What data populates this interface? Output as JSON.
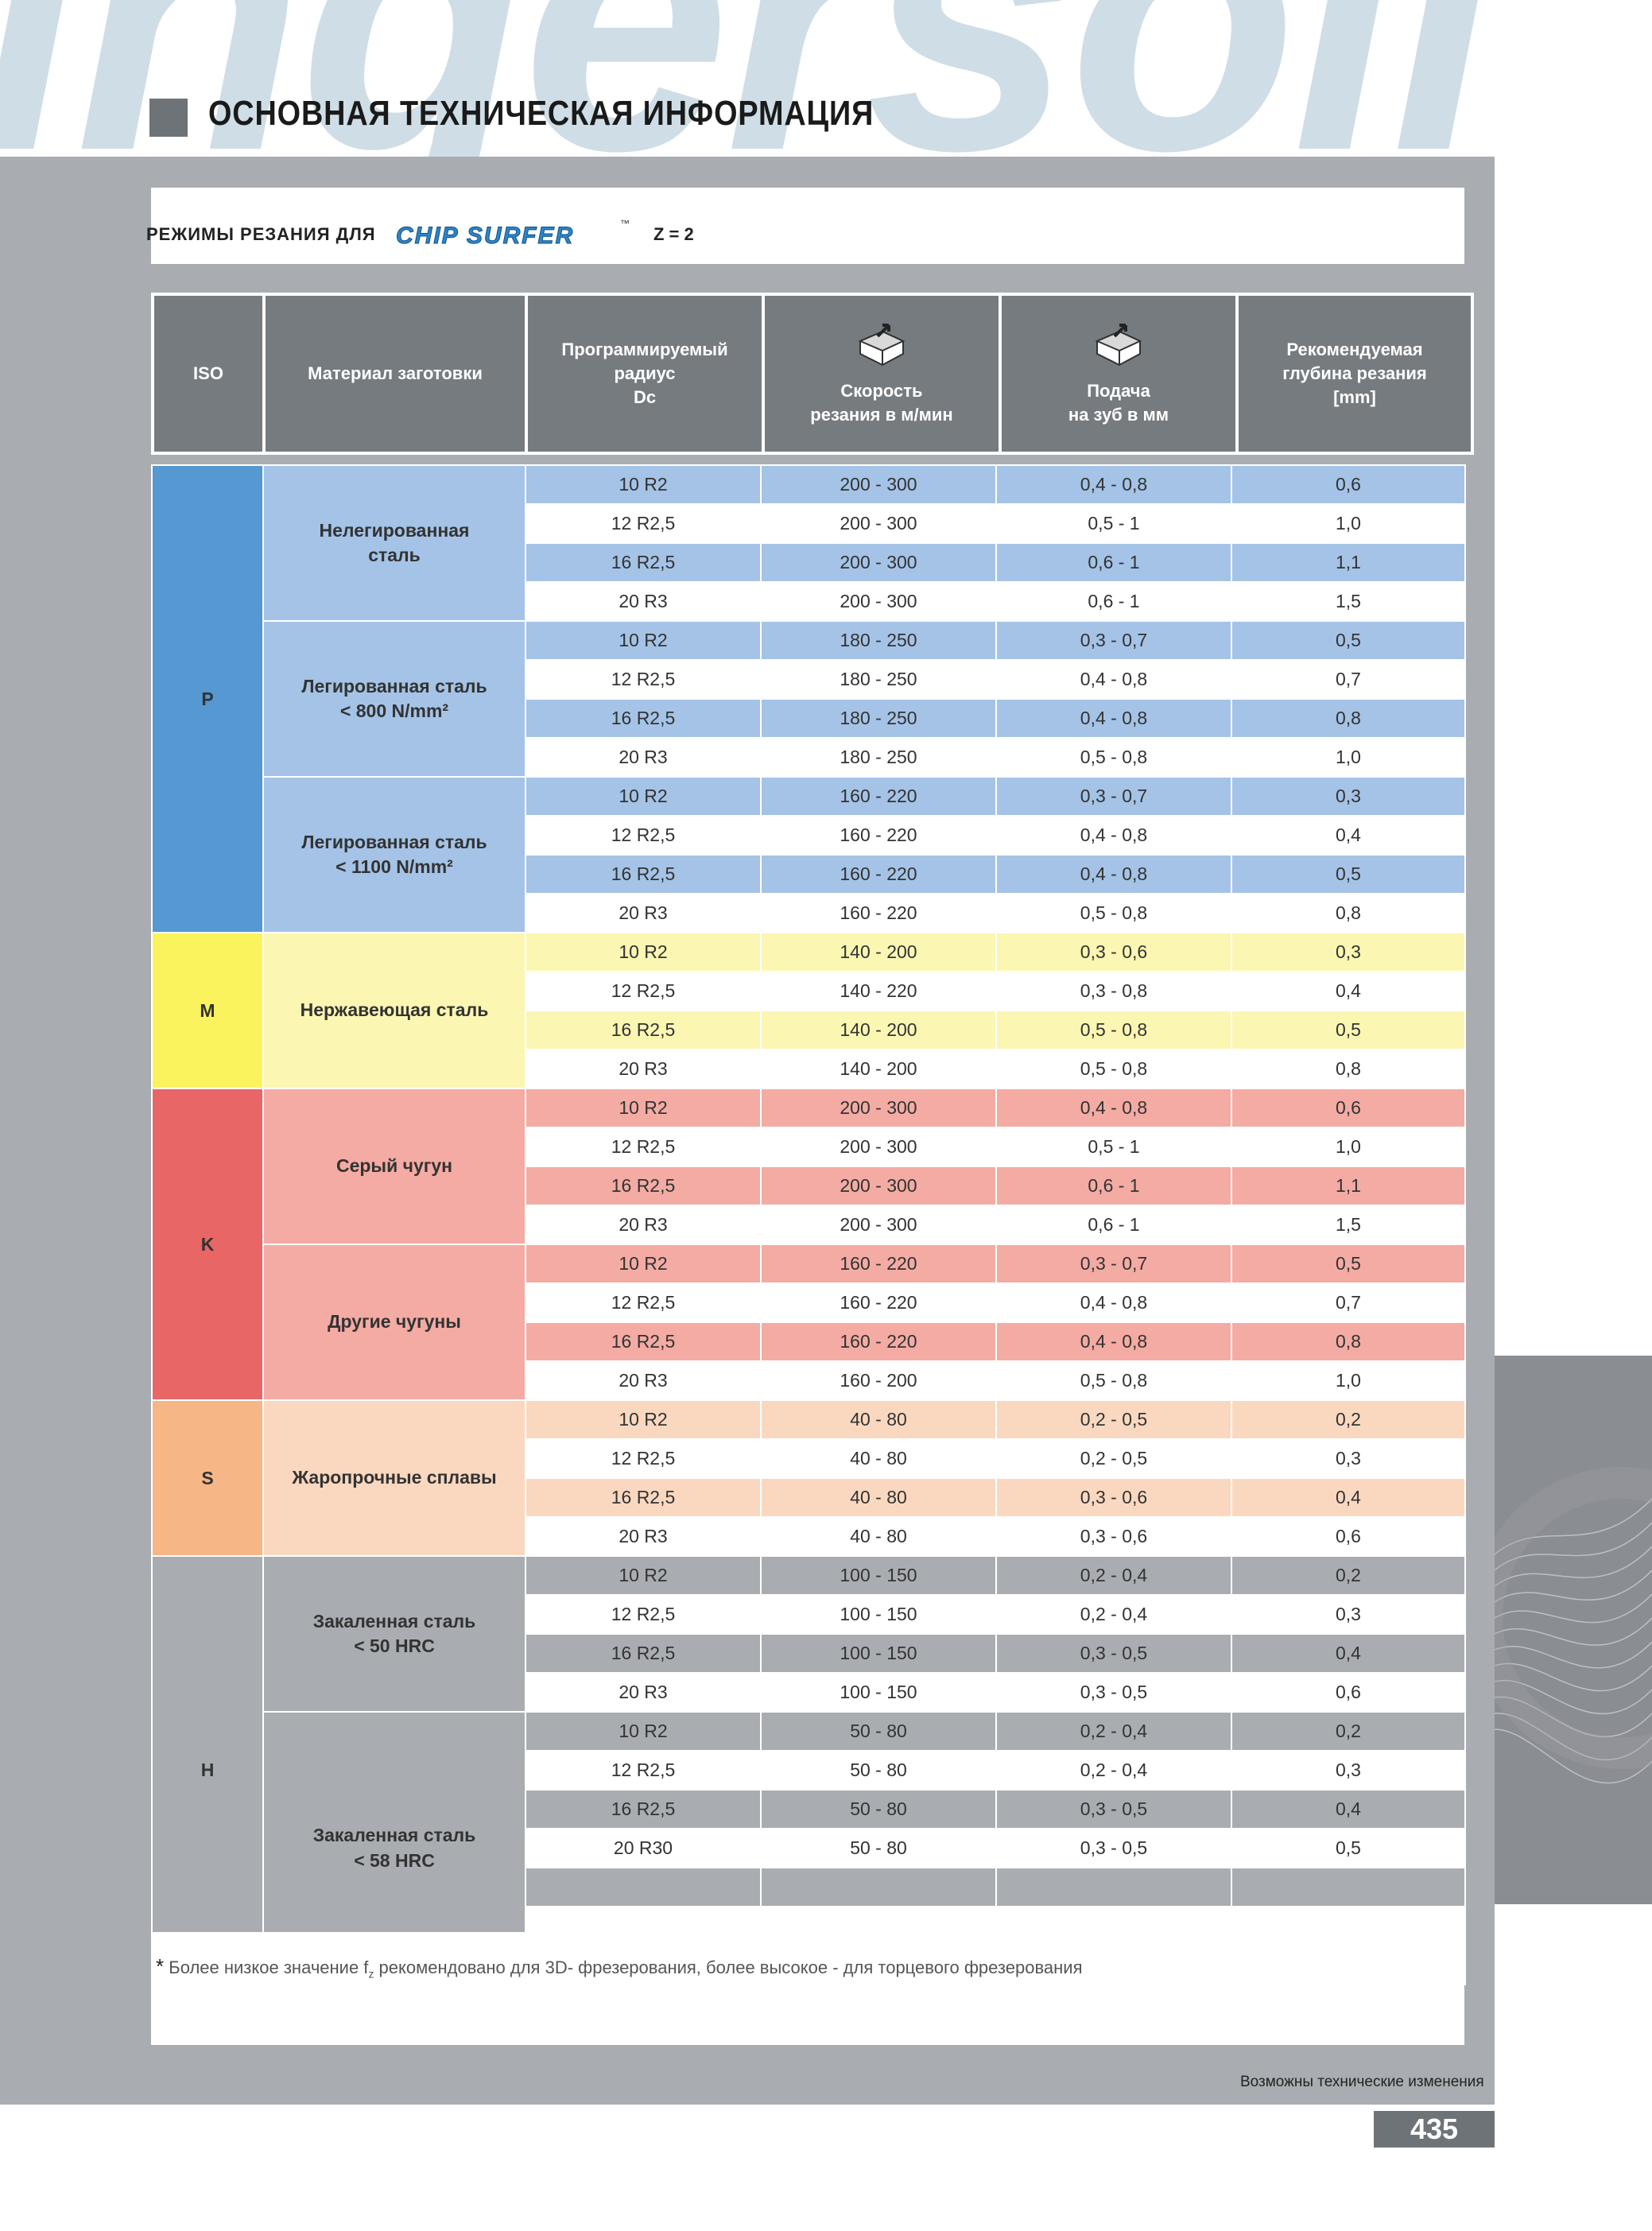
{
  "watermark": "ingersoll",
  "page_title": "ОСНОВНАЯ ТЕХНИЧЕСКАЯ ИНФОРМАЦИЯ",
  "subtitle": {
    "prefix": "РЕЖИМЫ РЕЗАНИЯ ДЛЯ",
    "brand": "CHIP SURFER",
    "trademark": "™",
    "z": "Z = 2"
  },
  "table_header": {
    "iso": "ISO",
    "material": "Материал заготовки",
    "radius": [
      "Программируемый",
      "радиус",
      "Dc"
    ],
    "speed": [
      "Скорость",
      "резания в м/мин"
    ],
    "feed": [
      "Подача",
      "на зуб в мм"
    ],
    "depth": [
      "Рекомендуемая",
      "глубина резания",
      "[mm]"
    ],
    "speed_icon": "cutting-insert-icon",
    "feed_icon": "cutting-insert-icon"
  },
  "groups": [
    {
      "iso": "P",
      "colors": {
        "iso": "#5598d2",
        "material": "#a4c3e6"
      },
      "materials": [
        {
          "name": [
            "Нелегированная",
            "сталь"
          ],
          "rows": [
            [
              "10 R2",
              "200 - 300",
              "0,4 - 0,8",
              "0,6"
            ],
            [
              "12 R2,5",
              "200 - 300",
              "0,5 - 1",
              "1,0"
            ],
            [
              "16 R2,5",
              "200 - 300",
              "0,6 - 1",
              "1,1"
            ],
            [
              "20 R3",
              "200 - 300",
              "0,6 - 1",
              "1,5"
            ]
          ]
        },
        {
          "name": [
            "Легированная сталь",
            "< 800 N/mm²"
          ],
          "rows": [
            [
              "10 R2",
              "180 - 250",
              "0,3 - 0,7",
              "0,5"
            ],
            [
              "12 R2,5",
              "180 - 250",
              "0,4 - 0,8",
              "0,7"
            ],
            [
              "16 R2,5",
              "180 - 250",
              "0,4 - 0,8",
              "0,8"
            ],
            [
              "20 R3",
              "180 - 250",
              "0,5 - 0,8",
              "1,0"
            ]
          ]
        },
        {
          "name": [
            "Легированная сталь",
            "< 1100 N/mm²"
          ],
          "rows": [
            [
              "10 R2",
              "160 - 220",
              "0,3 - 0,7",
              "0,3"
            ],
            [
              "12 R2,5",
              "160 - 220",
              "0,4 - 0,8",
              "0,4"
            ],
            [
              "16 R2,5",
              "160 - 220",
              "0,4 - 0,8",
              "0,5"
            ],
            [
              "20 R3",
              "160 - 220",
              "0,5 - 0,8",
              "0,8"
            ]
          ]
        }
      ]
    },
    {
      "iso": "M",
      "colors": {
        "iso": "#fbf35e",
        "material": "#fbf6b2"
      },
      "materials": [
        {
          "name": [
            "Нержавеющая сталь"
          ],
          "rows": [
            [
              "10 R2",
              "140 - 200",
              "0,3 - 0,6",
              "0,3"
            ],
            [
              "12 R2,5",
              "140 - 220",
              "0,3 - 0,8",
              "0,4"
            ],
            [
              "16 R2,5",
              "140 - 200",
              "0,5 - 0,8",
              "0,5"
            ],
            [
              "20 R3",
              "140 - 200",
              "0,5 - 0,8",
              "0,8"
            ]
          ]
        }
      ]
    },
    {
      "iso": "K",
      "colors": {
        "iso": "#e86666",
        "material": "#f3aba3"
      },
      "materials": [
        {
          "name": [
            "Серый чугун"
          ],
          "rows": [
            [
              "10 R2",
              "200 - 300",
              "0,4 - 0,8",
              "0,6"
            ],
            [
              "12 R2,5",
              "200 - 300",
              "0,5 - 1",
              "1,0"
            ],
            [
              "16 R2,5",
              "200 - 300",
              "0,6 - 1",
              "1,1"
            ],
            [
              "20 R3",
              "200 - 300",
              "0,6 - 1",
              "1,5"
            ]
          ]
        },
        {
          "name": [
            "Другие чугуны"
          ],
          "rows": [
            [
              "10 R2",
              "160 - 220",
              "0,3 - 0,7",
              "0,5"
            ],
            [
              "12 R2,5",
              "160 - 220",
              "0,4 - 0,8",
              "0,7"
            ],
            [
              "16 R2,5",
              "160 - 220",
              "0,4 - 0,8",
              "0,8"
            ],
            [
              "20 R3",
              "160 - 200",
              "0,5 - 0,8",
              "1,0"
            ]
          ]
        }
      ]
    },
    {
      "iso": "S",
      "colors": {
        "iso": "#f7b686",
        "material": "#fad8c0"
      },
      "materials": [
        {
          "name": [
            "Жаропрочные сплавы"
          ],
          "rows": [
            [
              "10 R2",
              "40 - 80",
              "0,2 - 0,5",
              "0,2"
            ],
            [
              "12 R2,5",
              "40 - 80",
              "0,2 - 0,5",
              "0,3"
            ],
            [
              "16 R2,5",
              "40 - 80",
              "0,3 - 0,6",
              "0,4"
            ],
            [
              "20 R3",
              "40 - 80",
              "0,3 - 0,6",
              "0,6"
            ]
          ]
        }
      ]
    },
    {
      "iso": "H",
      "colors": {
        "iso": "#a9adb1",
        "material": "#a9adb1"
      },
      "materials": [
        {
          "name": [
            "Закаленная сталь",
            "< 50 HRC"
          ],
          "rows": [
            [
              "10 R2",
              "100 - 150",
              "0,2 - 0,4",
              "0,2"
            ],
            [
              "12 R2,5",
              "100 - 150",
              "0,2 - 0,4",
              "0,3"
            ],
            [
              "16 R2,5",
              "100 - 150",
              "0,3 - 0,5",
              "0,4"
            ],
            [
              "20 R3",
              "100 - 150",
              "0,3 - 0,5",
              "0,6"
            ]
          ]
        },
        {
          "name": [
            "Закаленная сталь",
            "< 58 HRC"
          ],
          "rows": [
            [
              "10 R2",
              "50 - 80",
              "0,2 - 0,4",
              "0,2"
            ],
            [
              "12 R2,5",
              "50 - 80",
              "0,2 - 0,4",
              "0,3"
            ],
            [
              "16 R2,5",
              "50 - 80",
              "0,3 - 0,5",
              "0,4"
            ],
            [
              "20 R30",
              "50 - 80",
              "0,3 - 0,5",
              "0,5"
            ],
            [
              "",
              "",
              "",
              ""
            ],
            [
              "",
              "",
              "",
              ""
            ],
            [
              "",
              "",
              "",
              ""
            ]
          ]
        }
      ]
    }
  ],
  "footnote": {
    "star": "*",
    "before": "Более низкое значение f",
    "sub": "z",
    "after": " рекомендовано для 3D- фрезерования, более высокое - для торцевого фрезерования"
  },
  "changes_note": "Возможны технические изменения",
  "page_number": "435"
}
